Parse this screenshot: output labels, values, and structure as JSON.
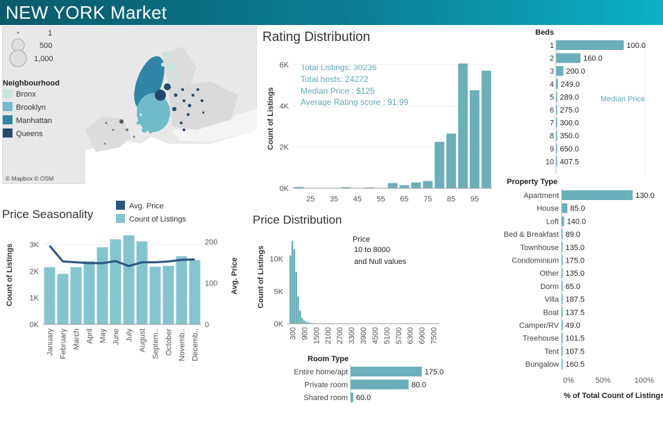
{
  "header": {
    "title": "NEW YORK Market",
    "bg": "#0b7f93"
  },
  "map": {
    "size_legend": [
      "1",
      "500",
      "1,000"
    ],
    "neighbourhood_title": "Neighbourhood",
    "neighbourhoods": [
      {
        "name": "Bronx",
        "color": "#c8e6df"
      },
      {
        "name": "Brooklyn",
        "color": "#6fbacb"
      },
      {
        "name": "Manhattan",
        "color": "#2f86a6"
      },
      {
        "name": "Queens",
        "color": "#24496e"
      }
    ],
    "attribution": "© Mapbox © OSM"
  },
  "rating": {
    "title": "Rating Distribution",
    "ylabel": "Count of Listings",
    "stats": [
      "Total  Listings: 30236",
      "Total hosts: 24272",
      "Median Price : $125",
      "Average Rating score : 91.99"
    ]
  },
  "beds": {
    "title": "Beds",
    "annotation": "Median Price"
  },
  "property": {
    "title": "Property Type",
    "xlabel": "% of Total Count of Listings"
  },
  "seasonality": {
    "title": "Price Seasonality",
    "legend": [
      {
        "label": "Avg. Price",
        "color": "#2b557f"
      },
      {
        "label": "Count of Listings",
        "color": "#84c4cf"
      }
    ],
    "ylabel_left": "Count of Listings",
    "ylabel_right": "Avg. Price"
  },
  "price_dist": {
    "title": "Price Distribution",
    "ylabel": "Count of Listings",
    "filter": [
      "Price",
      "10 to 8000",
      "and Null values"
    ]
  },
  "room": {
    "title": "Room Type"
  },
  "chart_data": [
    {
      "id": "rating",
      "type": "bar",
      "title": "Rating Distribution",
      "ylabel": "Count of Listings",
      "x": [
        20,
        25,
        30,
        35,
        40,
        45,
        50,
        55,
        60,
        65,
        70,
        75,
        80,
        85,
        90,
        95,
        100
      ],
      "values": [
        60,
        10,
        10,
        10,
        50,
        10,
        40,
        10,
        250,
        150,
        280,
        350,
        2250,
        2650,
        6050,
        4750,
        5700
      ],
      "x_ticks": [
        25,
        35,
        45,
        55,
        65,
        75,
        85,
        95
      ],
      "y_ticks": [
        {
          "v": 0,
          "label": "0K"
        },
        {
          "v": 2000,
          "label": "2K"
        },
        {
          "v": 4000,
          "label": "4K"
        },
        {
          "v": 6000,
          "label": "6K"
        }
      ],
      "ylim": [
        0,
        6300
      ],
      "color": "#6aafba"
    },
    {
      "id": "beds",
      "type": "bar",
      "title": "Beds",
      "categories": [
        "1",
        "2",
        "3",
        "4",
        "5",
        "6",
        "7",
        "8",
        "9",
        "10"
      ],
      "values": [
        100.0,
        160.0,
        200.0,
        249.0,
        289.0,
        275.0,
        300.0,
        350.0,
        650.0,
        407.5
      ],
      "labels": [
        "100.0",
        "160.0",
        "200.0",
        "249.0",
        "289.0",
        "275.0",
        "300.0",
        "350.0",
        "650.0",
        "407.5"
      ],
      "counts_share": [
        0.75,
        0.27,
        0.08,
        0.02,
        0.004,
        0.002,
        0.001,
        0.001,
        0.001,
        0.001
      ],
      "color": "#6aafba"
    },
    {
      "id": "property",
      "type": "bar",
      "title": "Property Type",
      "categories": [
        "Apartment",
        "House",
        "Loft",
        "Bed & Breakfast",
        "Townhouse",
        "Condominium",
        "Other",
        "Dorm",
        "Villa",
        "Boat",
        "Camper/RV",
        "Treehouse",
        "Tent",
        "Bungalow"
      ],
      "values": [
        130.0,
        85.0,
        140.0,
        89.0,
        135.0,
        175.0,
        135.0,
        65.0,
        187.5,
        137.5,
        49.0,
        101.5,
        107.5,
        160.5
      ],
      "labels": [
        "130.0",
        "85.0",
        "140.0",
        "89.0",
        "135.0",
        "175.0",
        "135.0",
        "65.0",
        "187.5",
        "137.5",
        "49.0",
        "101.5",
        "107.5",
        "160.5"
      ],
      "share": [
        0.86,
        0.07,
        0.03,
        0.007,
        0.005,
        0.003,
        0.002,
        0.001,
        0.001,
        0.001,
        0.001,
        0.001,
        0.001,
        0.001
      ],
      "x_ticks": [
        "0%",
        "50%",
        "100%"
      ],
      "xlabel": "% of Total Count of Listings",
      "color": "#6aafba"
    },
    {
      "id": "seasonality",
      "type": "bar",
      "title": "Price Seasonality",
      "categories": [
        "January",
        "February",
        "March",
        "April",
        "May",
        "June",
        "July",
        "August",
        "Septem..",
        "October",
        "Novemb..",
        "Decemb.."
      ],
      "series": [
        {
          "name": "Count of Listings",
          "values": [
            2150,
            1900,
            2150,
            2380,
            2900,
            3200,
            3350,
            3120,
            2170,
            2200,
            2560,
            2420
          ],
          "color": "#84c4cf"
        },
        {
          "name": "Avg. Price",
          "values": [
            190,
            152,
            150,
            148,
            148,
            153,
            141,
            150,
            150,
            152,
            156,
            157
          ],
          "color": "#2b557f"
        }
      ],
      "y_ticks_left": [
        {
          "v": 0,
          "label": "0K"
        },
        {
          "v": 1000,
          "label": "1K"
        },
        {
          "v": 2000,
          "label": "2K"
        },
        {
          "v": 3000,
          "label": "3K"
        }
      ],
      "y_ticks_right": [
        0,
        100,
        200
      ],
      "ylim_left": [
        0,
        3500
      ],
      "ylim_right": [
        0,
        225
      ]
    },
    {
      "id": "price_dist",
      "type": "bar",
      "title": "Price Distribution",
      "ylabel": "Count of Listings",
      "x": [
        10,
        50,
        100,
        150,
        200,
        250,
        300,
        350,
        400,
        450,
        500,
        550,
        600
      ],
      "values": [
        10500,
        12800,
        11500,
        8000,
        4200,
        2000,
        900,
        500,
        300,
        200,
        150,
        100,
        60
      ],
      "x_ticks": [
        "300",
        "900",
        "1500",
        "2100",
        "2700",
        "3300",
        "3900",
        "4500",
        "5100",
        "5700",
        "6300",
        "6900",
        "7500"
      ],
      "y_ticks": [
        {
          "v": 0,
          "label": "0K"
        },
        {
          "v": 5000,
          "label": "5K"
        },
        {
          "v": 10000,
          "label": "10K"
        }
      ],
      "ylim": [
        0,
        13500
      ],
      "color": "#6aafba"
    },
    {
      "id": "room",
      "type": "bar",
      "title": "Room Type",
      "categories": [
        "Entire home/apt",
        "Private room",
        "Shared room"
      ],
      "values": [
        175.0,
        80.0,
        60.0
      ],
      "labels": [
        "175.0",
        "80.0",
        "60.0"
      ],
      "share": [
        0.54,
        0.44,
        0.02
      ],
      "color": "#6aafba"
    }
  ]
}
